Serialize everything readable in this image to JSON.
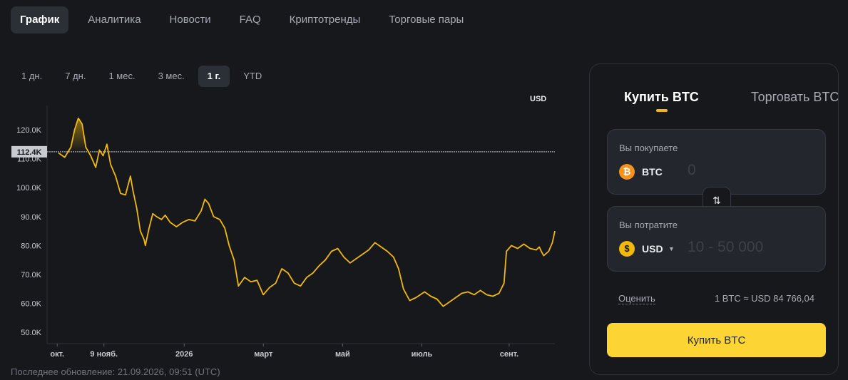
{
  "tabs": [
    {
      "label": "График",
      "active": true
    },
    {
      "label": "Аналитика"
    },
    {
      "label": "Новости"
    },
    {
      "label": "FAQ"
    },
    {
      "label": "Криптотренды"
    },
    {
      "label": "Торговые пары"
    }
  ],
  "ranges": [
    {
      "label": "1 дн."
    },
    {
      "label": "7 дн."
    },
    {
      "label": "1 мес."
    },
    {
      "label": "3 мес."
    },
    {
      "label": "1 г.",
      "active": true
    },
    {
      "label": "YTD"
    }
  ],
  "chart": {
    "currency": "USD",
    "current_price_label": "112.4K"
  },
  "chart_data": {
    "type": "line",
    "ylabel_unit": "USD",
    "y_ticks": [
      120000,
      110000,
      100000,
      90000,
      80000,
      70000,
      60000,
      50000
    ],
    "y_tick_labels": [
      "120.0K",
      "110.0K",
      "100.0K",
      "90.0K",
      "80.0K",
      "70.0K",
      "60.0K",
      "50.0K"
    ],
    "x_tick_labels": [
      "окт.",
      "9 нояб.",
      "2026",
      "март",
      "май",
      "июль",
      "сент."
    ],
    "x_tick_positions": [
      0.02,
      0.112,
      0.27,
      0.426,
      0.582,
      0.738,
      0.91
    ],
    "reference_price": 112400,
    "series_color": "#f0b90b",
    "points": [
      [
        0.0,
        112000
      ],
      [
        0.01,
        110500
      ],
      [
        0.02,
        114000
      ],
      [
        0.026,
        120000
      ],
      [
        0.032,
        124000
      ],
      [
        0.038,
        122000
      ],
      [
        0.044,
        114000
      ],
      [
        0.052,
        111000
      ],
      [
        0.06,
        107000
      ],
      [
        0.066,
        113000
      ],
      [
        0.072,
        111000
      ],
      [
        0.078,
        115000
      ],
      [
        0.084,
        108000
      ],
      [
        0.092,
        104000
      ],
      [
        0.1,
        98000
      ],
      [
        0.108,
        97500
      ],
      [
        0.116,
        104000
      ],
      [
        0.12,
        99000
      ],
      [
        0.126,
        93000
      ],
      [
        0.132,
        85000
      ],
      [
        0.138,
        82000
      ],
      [
        0.14,
        80000
      ],
      [
        0.146,
        86000
      ],
      [
        0.152,
        91000
      ],
      [
        0.158,
        90000
      ],
      [
        0.166,
        89000
      ],
      [
        0.172,
        90500
      ],
      [
        0.18,
        88000
      ],
      [
        0.19,
        86500
      ],
      [
        0.2,
        88000
      ],
      [
        0.21,
        89000
      ],
      [
        0.22,
        88500
      ],
      [
        0.23,
        92000
      ],
      [
        0.236,
        96000
      ],
      [
        0.242,
        94500
      ],
      [
        0.25,
        90000
      ],
      [
        0.26,
        89000
      ],
      [
        0.268,
        86000
      ],
      [
        0.275,
        80000
      ],
      [
        0.283,
        75000
      ],
      [
        0.29,
        66000
      ],
      [
        0.3,
        69000
      ],
      [
        0.31,
        67500
      ],
      [
        0.32,
        68000
      ],
      [
        0.33,
        63000
      ],
      [
        0.34,
        65500
      ],
      [
        0.35,
        67000
      ],
      [
        0.36,
        72000
      ],
      [
        0.37,
        70500
      ],
      [
        0.38,
        67000
      ],
      [
        0.39,
        66000
      ],
      [
        0.4,
        69000
      ],
      [
        0.41,
        70500
      ],
      [
        0.42,
        73000
      ],
      [
        0.43,
        75000
      ],
      [
        0.44,
        78000
      ],
      [
        0.45,
        79000
      ],
      [
        0.46,
        76000
      ],
      [
        0.47,
        74000
      ],
      [
        0.48,
        75500
      ],
      [
        0.49,
        77000
      ],
      [
        0.5,
        78500
      ],
      [
        0.51,
        81000
      ],
      [
        0.52,
        79500
      ],
      [
        0.53,
        78000
      ],
      [
        0.54,
        76000
      ],
      [
        0.548,
        72000
      ],
      [
        0.556,
        65000
      ],
      [
        0.566,
        61000
      ],
      [
        0.576,
        62000
      ],
      [
        0.59,
        64000
      ],
      [
        0.6,
        62500
      ],
      [
        0.61,
        61500
      ],
      [
        0.62,
        59000
      ],
      [
        0.63,
        60500
      ],
      [
        0.64,
        62000
      ],
      [
        0.65,
        63500
      ],
      [
        0.66,
        64000
      ],
      [
        0.67,
        63000
      ],
      [
        0.68,
        64500
      ],
      [
        0.69,
        63000
      ],
      [
        0.7,
        62500
      ],
      [
        0.71,
        63500
      ],
      [
        0.718,
        67000
      ],
      [
        0.722,
        78000
      ],
      [
        0.73,
        80000
      ],
      [
        0.74,
        79000
      ],
      [
        0.75,
        80500
      ],
      [
        0.76,
        79000
      ],
      [
        0.77,
        78500
      ],
      [
        0.775,
        79500
      ],
      [
        0.778,
        78000
      ],
      [
        0.782,
        76500
      ],
      [
        0.79,
        78000
      ],
      [
        0.796,
        81000
      ],
      [
        0.8,
        85000
      ]
    ]
  },
  "updated_text": "Последнее обновление: 21.09.2026, 09:51 (UTC)",
  "panel": {
    "tab_buy": "Купить BTC",
    "tab_trade": "Торговать BTC",
    "receive_label": "Вы покупаете",
    "receive_currency": "BTC",
    "receive_value": "0",
    "spend_label": "Вы потратите",
    "spend_currency": "USD",
    "spend_placeholder": "10 - 50 000",
    "estimate_label": "Оценить",
    "rate_text": "1 BTC ≈ USD 84 766,04",
    "buy_button": "Купить BTC",
    "btc_symbol": "₿",
    "usd_symbol": "$",
    "caret": "▼",
    "swap_glyph": "⇅"
  }
}
